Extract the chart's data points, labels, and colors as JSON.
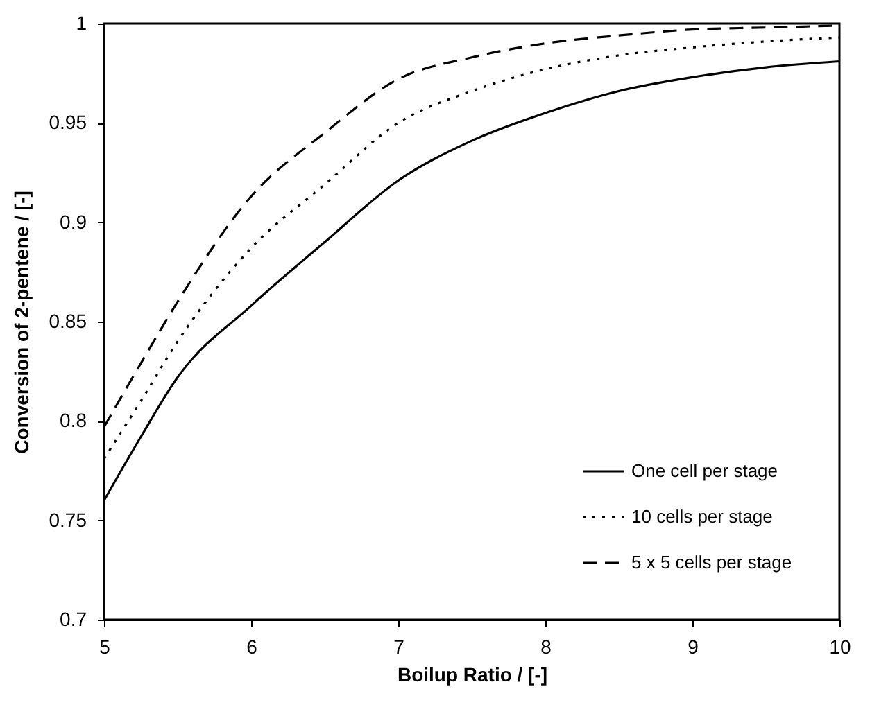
{
  "chart_data": {
    "type": "line",
    "xlabel": "Boilup Ratio / [-]",
    "ylabel": "Conversion of 2-pentene / [-]",
    "x": [
      5,
      5.25,
      5.5,
      6,
      6.5,
      7,
      7.5,
      8,
      8.5,
      9,
      9.5,
      10
    ],
    "xlim": [
      5,
      10
    ],
    "xticks": [
      5,
      6,
      7,
      8,
      9,
      10
    ],
    "ylim": [
      0.7,
      1
    ],
    "yticks": [
      0.7,
      0.75,
      0.8,
      0.85,
      0.9,
      0.95,
      1
    ],
    "grid": false,
    "legend": "bottom right",
    "marker": "none",
    "series": [
      {
        "name": "One cell per stage",
        "color": "#000000",
        "line_style": "solid",
        "values": [
          0.76,
          0.792,
          0.822,
          0.858,
          0.89,
          0.921,
          0.941,
          0.955,
          0.966,
          0.973,
          0.978,
          0.981
        ]
      },
      {
        "name": "10 cells per stage",
        "color": "#000000",
        "line_style": "dotted",
        "values": [
          0.781,
          0.81,
          0.84,
          0.887,
          0.919,
          0.95,
          0.966,
          0.977,
          0.984,
          0.988,
          0.991,
          0.993
        ]
      },
      {
        "name": "5 x 5 cells per stage",
        "color": "#000000",
        "line_style": "dashed",
        "values": [
          0.797,
          0.829,
          0.86,
          0.913,
          0.945,
          0.972,
          0.983,
          0.99,
          0.994,
          0.997,
          0.998,
          0.999
        ]
      }
    ]
  }
}
